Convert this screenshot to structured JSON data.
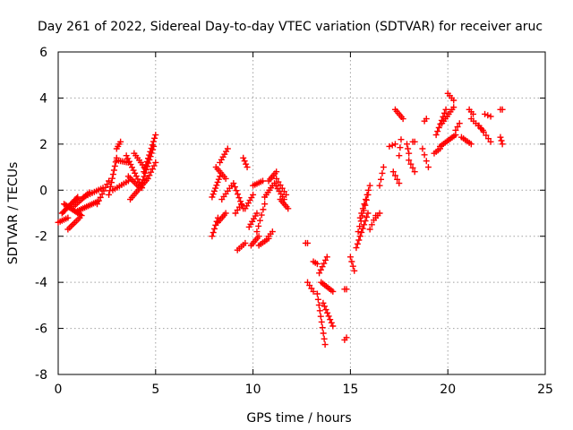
{
  "chart_data": {
    "type": "scatter",
    "title": "Day 261 of 2022, Sidereal Day-to-day VTEC variation (SDTVAR) for receiver aruc",
    "xlabel": "GPS time / hours",
    "ylabel": "SDTVAR / TECUs",
    "xlim": [
      0,
      25
    ],
    "ylim": [
      -8,
      6
    ],
    "xticks": [
      0,
      5,
      10,
      15,
      20,
      25
    ],
    "yticks": [
      -8,
      -6,
      -4,
      -2,
      0,
      2,
      4,
      6
    ],
    "grid": true,
    "marker": "plus",
    "color": "#ff0000",
    "series": [
      {
        "name": "SDTVAR",
        "segments": [
          {
            "x0": 0.0,
            "x1": 0.5,
            "y0": -1.4,
            "y1": -1.2,
            "n": 6
          },
          {
            "x0": 0.2,
            "x1": 1.0,
            "y0": -1.0,
            "y1": -0.3,
            "n": 14
          },
          {
            "x0": 0.3,
            "x1": 1.2,
            "y0": -0.6,
            "y1": -1.1,
            "n": 14
          },
          {
            "x0": 0.5,
            "x1": 1.1,
            "y0": -1.7,
            "y1": -1.2,
            "n": 8
          },
          {
            "x0": 0.8,
            "x1": 1.6,
            "y0": -0.7,
            "y1": -0.1,
            "n": 10
          },
          {
            "x0": 1.0,
            "x1": 2.0,
            "y0": -0.9,
            "y1": -0.5,
            "n": 12
          },
          {
            "x0": 1.3,
            "x1": 2.3,
            "y0": -0.3,
            "y1": 0.1,
            "n": 10
          },
          {
            "x0": 2.0,
            "x1": 2.6,
            "y0": -0.6,
            "y1": 0.4,
            "n": 8
          },
          {
            "x0": 2.6,
            "x1": 3.0,
            "y0": -0.2,
            "y1": 1.4,
            "n": 10
          },
          {
            "x0": 2.8,
            "x1": 3.6,
            "y0": 0.0,
            "y1": 0.4,
            "n": 8
          },
          {
            "x0": 3.0,
            "x1": 3.2,
            "y0": 1.8,
            "y1": 2.1,
            "n": 4
          },
          {
            "x0": 3.0,
            "x1": 3.6,
            "y0": 1.3,
            "y1": 1.2,
            "n": 7
          },
          {
            "x0": 3.5,
            "x1": 4.3,
            "y0": 1.5,
            "y1": 0.1,
            "n": 12
          },
          {
            "x0": 3.6,
            "x1": 4.2,
            "y0": 0.6,
            "y1": 0.1,
            "n": 8
          },
          {
            "x0": 3.7,
            "x1": 4.6,
            "y0": -0.4,
            "y1": 0.5,
            "n": 12
          },
          {
            "x0": 3.9,
            "x1": 4.5,
            "y0": 1.6,
            "y1": 0.9,
            "n": 8
          },
          {
            "x0": 4.3,
            "x1": 4.9,
            "y0": 0.3,
            "y1": 1.9,
            "n": 12
          },
          {
            "x0": 4.4,
            "x1": 5.0,
            "y0": 0.8,
            "y1": 2.4,
            "n": 12
          },
          {
            "x0": 4.6,
            "x1": 5.0,
            "y0": 0.5,
            "y1": 1.2,
            "n": 6
          },
          {
            "x0": 7.9,
            "x1": 8.2,
            "y0": -2.0,
            "y1": -1.2,
            "n": 6
          },
          {
            "x0": 7.9,
            "x1": 8.3,
            "y0": -0.3,
            "y1": 0.6,
            "n": 8
          },
          {
            "x0": 8.1,
            "x1": 8.6,
            "y0": 1.0,
            "y1": 0.5,
            "n": 7
          },
          {
            "x0": 8.2,
            "x1": 8.6,
            "y0": -1.4,
            "y1": -1.0,
            "n": 6
          },
          {
            "x0": 8.3,
            "x1": 8.7,
            "y0": 1.2,
            "y1": 1.8,
            "n": 6
          },
          {
            "x0": 8.4,
            "x1": 8.9,
            "y0": -0.4,
            "y1": 0.2,
            "n": 6
          },
          {
            "x0": 9.0,
            "x1": 9.5,
            "y0": 0.3,
            "y1": -0.8,
            "n": 8
          },
          {
            "x0": 9.1,
            "x1": 9.4,
            "y0": -1.0,
            "y1": -0.6,
            "n": 4
          },
          {
            "x0": 9.2,
            "x1": 9.6,
            "y0": -2.6,
            "y1": -2.3,
            "n": 5
          },
          {
            "x0": 9.5,
            "x1": 9.7,
            "y0": 1.4,
            "y1": 1.0,
            "n": 4
          },
          {
            "x0": 9.6,
            "x1": 10.0,
            "y0": -0.8,
            "y1": -0.2,
            "n": 6
          },
          {
            "x0": 9.8,
            "x1": 10.2,
            "y0": -1.6,
            "y1": -1.0,
            "n": 6
          },
          {
            "x0": 9.9,
            "x1": 10.3,
            "y0": -2.4,
            "y1": -2.0,
            "n": 6
          },
          {
            "x0": 10.0,
            "x1": 10.5,
            "y0": 0.2,
            "y1": 0.4,
            "n": 6
          },
          {
            "x0": 10.2,
            "x1": 10.6,
            "y0": -1.8,
            "y1": -0.6,
            "n": 6
          },
          {
            "x0": 10.3,
            "x1": 10.8,
            "y0": -2.4,
            "y1": -2.1,
            "n": 6
          },
          {
            "x0": 10.6,
            "x1": 11.0,
            "y0": -0.3,
            "y1": 0.2,
            "n": 6
          },
          {
            "x0": 10.8,
            "x1": 11.2,
            "y0": 0.4,
            "y1": 0.8,
            "n": 6
          },
          {
            "x0": 10.8,
            "x1": 11.0,
            "y0": -2.0,
            "y1": -1.8,
            "n": 3
          },
          {
            "x0": 11.1,
            "x1": 11.6,
            "y0": 0.3,
            "y1": -0.4,
            "n": 7
          },
          {
            "x0": 11.4,
            "x1": 11.8,
            "y0": -0.4,
            "y1": -0.8,
            "n": 6
          },
          {
            "x0": 11.2,
            "x1": 11.7,
            "y0": 0.5,
            "y1": -0.2,
            "n": 6
          },
          {
            "x0": 12.7,
            "x1": 12.8,
            "y0": -2.3,
            "y1": -2.3,
            "n": 2
          },
          {
            "x0": 12.8,
            "x1": 13.1,
            "y0": -4.0,
            "y1": -4.4,
            "n": 4
          },
          {
            "x0": 13.1,
            "x1": 13.3,
            "y0": -3.1,
            "y1": -3.2,
            "n": 3
          },
          {
            "x0": 13.3,
            "x1": 13.7,
            "y0": -4.5,
            "y1": -6.7,
            "n": 10
          },
          {
            "x0": 13.4,
            "x1": 13.8,
            "y0": -3.6,
            "y1": -2.9,
            "n": 6
          },
          {
            "x0": 13.5,
            "x1": 14.1,
            "y0": -4.0,
            "y1": -4.4,
            "n": 8
          },
          {
            "x0": 13.6,
            "x1": 14.1,
            "y0": -4.9,
            "y1": -5.9,
            "n": 8
          },
          {
            "x0": 14.7,
            "x1": 14.8,
            "y0": -4.3,
            "y1": -4.3,
            "n": 2
          },
          {
            "x0": 14.7,
            "x1": 14.8,
            "y0": -6.5,
            "y1": -6.4,
            "n": 2
          },
          {
            "x0": 15.0,
            "x1": 15.2,
            "y0": -2.9,
            "y1": -3.5,
            "n": 4
          },
          {
            "x0": 15.3,
            "x1": 15.9,
            "y0": -2.5,
            "y1": -1.0,
            "n": 10
          },
          {
            "x0": 15.4,
            "x1": 15.9,
            "y0": -1.8,
            "y1": -0.2,
            "n": 8
          },
          {
            "x0": 15.5,
            "x1": 16.0,
            "y0": -1.2,
            "y1": 0.2,
            "n": 8
          },
          {
            "x0": 16.0,
            "x1": 16.3,
            "y0": -1.7,
            "y1": -1.1,
            "n": 4
          },
          {
            "x0": 16.3,
            "x1": 16.5,
            "y0": -1.2,
            "y1": -1.0,
            "n": 3
          },
          {
            "x0": 16.5,
            "x1": 16.7,
            "y0": 0.2,
            "y1": 1.0,
            "n": 4
          },
          {
            "x0": 17.0,
            "x1": 17.3,
            "y0": 1.9,
            "y1": 2.0,
            "n": 3
          },
          {
            "x0": 17.3,
            "x1": 17.7,
            "y0": 3.5,
            "y1": 3.1,
            "n": 6
          },
          {
            "x0": 17.2,
            "x1": 17.5,
            "y0": 0.8,
            "y1": 0.3,
            "n": 4
          },
          {
            "x0": 17.5,
            "x1": 17.6,
            "y0": 1.5,
            "y1": 2.2,
            "n": 3
          },
          {
            "x0": 17.9,
            "x1": 18.0,
            "y0": 2.0,
            "y1": 1.6,
            "n": 3
          },
          {
            "x0": 18.0,
            "x1": 18.3,
            "y0": 1.3,
            "y1": 0.8,
            "n": 4
          },
          {
            "x0": 18.2,
            "x1": 18.3,
            "y0": 2.1,
            "y1": 2.1,
            "n": 2
          },
          {
            "x0": 18.7,
            "x1": 19.0,
            "y0": 1.8,
            "y1": 1.0,
            "n": 4
          },
          {
            "x0": 18.8,
            "x1": 18.9,
            "y0": 3.0,
            "y1": 3.1,
            "n": 2
          },
          {
            "x0": 19.3,
            "x1": 19.6,
            "y0": 1.6,
            "y1": 1.8,
            "n": 4
          },
          {
            "x0": 19.4,
            "x1": 19.9,
            "y0": 2.4,
            "y1": 3.5,
            "n": 8
          },
          {
            "x0": 19.6,
            "x1": 20.4,
            "y0": 1.9,
            "y1": 2.4,
            "n": 10
          },
          {
            "x0": 19.7,
            "x1": 20.3,
            "y0": 2.9,
            "y1": 3.6,
            "n": 8
          },
          {
            "x0": 20.0,
            "x1": 20.3,
            "y0": 4.2,
            "y1": 3.9,
            "n": 4
          },
          {
            "x0": 20.4,
            "x1": 20.6,
            "y0": 2.6,
            "y1": 2.9,
            "n": 3
          },
          {
            "x0": 20.7,
            "x1": 21.2,
            "y0": 2.3,
            "y1": 2.0,
            "n": 6
          },
          {
            "x0": 21.1,
            "x1": 21.3,
            "y0": 3.5,
            "y1": 3.3,
            "n": 3
          },
          {
            "x0": 21.2,
            "x1": 21.8,
            "y0": 3.1,
            "y1": 2.6,
            "n": 6
          },
          {
            "x0": 21.6,
            "x1": 22.2,
            "y0": 2.8,
            "y1": 2.1,
            "n": 6
          },
          {
            "x0": 21.9,
            "x1": 22.2,
            "y0": 3.3,
            "y1": 3.2,
            "n": 3
          },
          {
            "x0": 22.7,
            "x1": 22.8,
            "y0": 3.5,
            "y1": 3.5,
            "n": 2
          },
          {
            "x0": 22.7,
            "x1": 22.8,
            "y0": 2.3,
            "y1": 2.0,
            "n": 3
          }
        ]
      }
    ]
  }
}
